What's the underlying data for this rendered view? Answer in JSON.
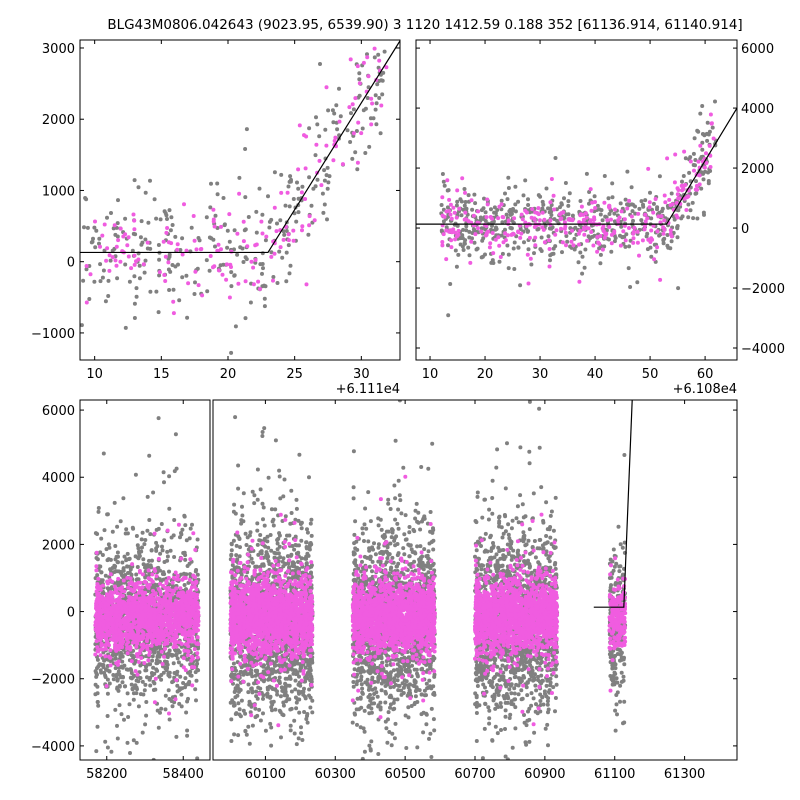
{
  "title": "BLG43M0806.042643 (9023.95, 6539.90)   3 1120 1412.59 0.188 352 [61136.914, 61140.914]",
  "colors": {
    "gray": "#808080",
    "pink": "#f05ce0",
    "line": "#000000"
  },
  "chart_data": [
    {
      "type": "scatter",
      "panel": "top-left",
      "xlim": [
        8.9,
        32.9
      ],
      "ylim": [
        -1380,
        3112
      ],
      "xticks": [
        10,
        15,
        20,
        25,
        30
      ],
      "xtick_labels": [
        "10",
        "15",
        "20",
        "25",
        "30"
      ],
      "yticks": [
        -1000,
        0,
        1000,
        2000,
        3000
      ],
      "ytick_labels": [
        "−1000",
        "0",
        "1000",
        "2000",
        "3000"
      ],
      "yaxis": "left",
      "offset_label": "+6.111e4",
      "model": [
        [
          8.9,
          130
        ],
        [
          23,
          130
        ],
        [
          32.9,
          3100
        ]
      ],
      "clusters": [
        {
          "xmin": 9,
          "xmax": 32,
          "n": 330,
          "spread": 380,
          "color": "gray",
          "follow_model": true
        },
        {
          "xmin": 9,
          "xmax": 32,
          "n": 170,
          "spread": 330,
          "color": "pink",
          "follow_model": true
        }
      ]
    },
    {
      "type": "scatter",
      "panel": "top-right",
      "xlim": [
        7.45,
        65.8
      ],
      "ylim": [
        -4400,
        6270
      ],
      "xticks": [
        10,
        20,
        30,
        40,
        50,
        60
      ],
      "xtick_labels": [
        "10",
        "20",
        "30",
        "40",
        "50",
        "60"
      ],
      "yticks": [
        -4000,
        -2000,
        0,
        2000,
        4000,
        6000
      ],
      "ytick_labels": [
        "−4000",
        "−2000",
        "0",
        "2000",
        "4000",
        "6000"
      ],
      "yaxis": "right",
      "offset_label": "+6.108e4",
      "model": [
        [
          7.45,
          130
        ],
        [
          53,
          130
        ],
        [
          65.8,
          4000
        ]
      ],
      "clusters": [
        {
          "xmin": 12,
          "xmax": 62,
          "n": 600,
          "spread": 600,
          "color": "gray",
          "follow_model": true
        },
        {
          "xmin": 12,
          "xmax": 62,
          "n": 320,
          "spread": 450,
          "color": "pink",
          "follow_model": true
        }
      ]
    },
    {
      "type": "scatter",
      "panel": "bottom",
      "broken_axis": true,
      "xlim_left": [
        58130,
        58470
      ],
      "xlim_right": [
        59950,
        61450
      ],
      "ylim": [
        -4420,
        6300
      ],
      "xticks": [
        58200,
        58400,
        60100,
        60300,
        60500,
        60700,
        60900,
        61100,
        61300
      ],
      "xtick_labels": [
        "58200",
        "58400",
        "60100",
        "60300",
        "60500",
        "60700",
        "60900",
        "61100",
        "61300"
      ],
      "yticks": [
        -4000,
        -2000,
        0,
        2000,
        4000,
        6000
      ],
      "ytick_labels": [
        "−4000",
        "−2000",
        "0",
        "2000",
        "4000",
        "6000"
      ],
      "yaxis": "left",
      "model": [
        [
          61040,
          130
        ],
        [
          61126,
          130
        ],
        [
          61150,
          6300
        ]
      ],
      "clusters": [
        {
          "xmin": 58170,
          "xmax": 58440,
          "n": 1500,
          "spread": 1100,
          "color": "gray"
        },
        {
          "xmin": 58170,
          "xmax": 58440,
          "n": 1500,
          "spread": 450,
          "color": "pink"
        },
        {
          "xmin": 60000,
          "xmax": 60235,
          "n": 1700,
          "spread": 1300,
          "color": "gray"
        },
        {
          "xmin": 60000,
          "xmax": 60235,
          "n": 1700,
          "spread": 550,
          "color": "pink"
        },
        {
          "xmin": 60350,
          "xmax": 60585,
          "n": 1700,
          "spread": 1200,
          "color": "gray"
        },
        {
          "xmin": 60350,
          "xmax": 60585,
          "n": 1700,
          "spread": 500,
          "color": "pink"
        },
        {
          "xmin": 60700,
          "xmax": 60935,
          "n": 1700,
          "spread": 1250,
          "color": "gray"
        },
        {
          "xmin": 60700,
          "xmax": 60935,
          "n": 1700,
          "spread": 500,
          "color": "pink"
        },
        {
          "xmin": 61085,
          "xmax": 61130,
          "n": 250,
          "spread": 900,
          "color": "gray"
        },
        {
          "xmin": 61085,
          "xmax": 61130,
          "n": 200,
          "spread": 500,
          "color": "pink"
        }
      ]
    }
  ]
}
